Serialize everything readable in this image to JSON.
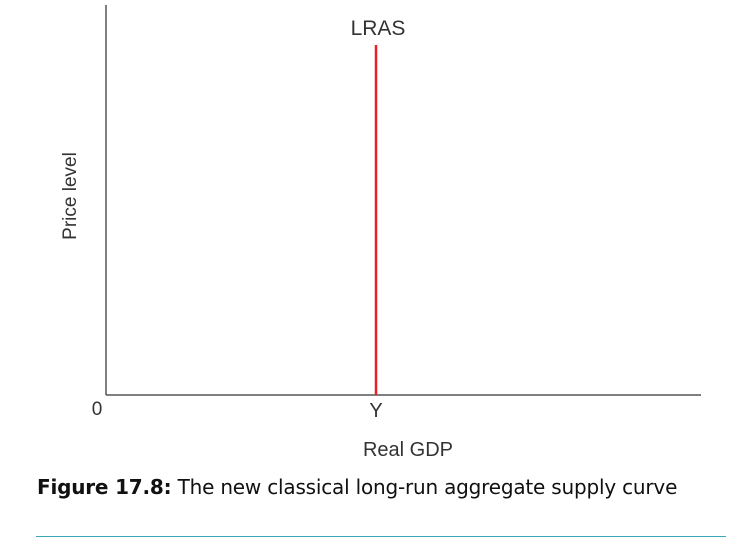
{
  "chart_data": {
    "type": "line",
    "xlabel": "Real GDP",
    "ylabel": "Price level",
    "origin_label": "0",
    "x_tick_labels": [
      "Y"
    ],
    "series": [
      {
        "name": "LRAS",
        "orientation": "vertical",
        "x": "Y",
        "color": "#e8202a"
      }
    ],
    "grid": false,
    "axis_color": "#555555"
  },
  "caption": {
    "label": "Figure 17.8:",
    "text": " The new classical long-run aggregate supply curve"
  },
  "colors": {
    "rule": "#3aa8b8"
  }
}
